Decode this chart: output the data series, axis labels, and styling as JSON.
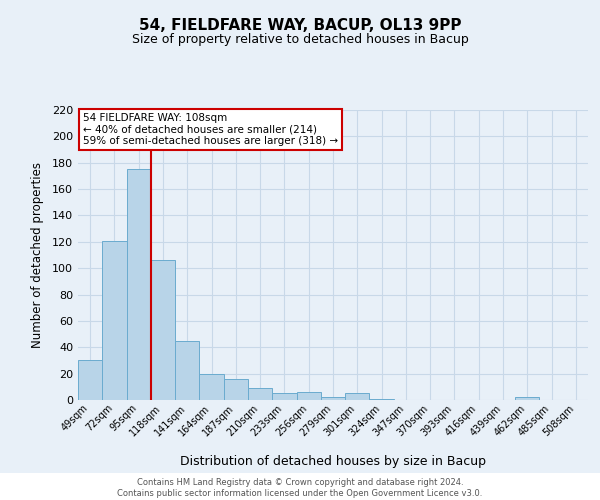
{
  "title": "54, FIELDFARE WAY, BACUP, OL13 9PP",
  "subtitle": "Size of property relative to detached houses in Bacup",
  "xlabel": "Distribution of detached houses by size in Bacup",
  "ylabel": "Number of detached properties",
  "bin_labels": [
    "49sqm",
    "72sqm",
    "95sqm",
    "118sqm",
    "141sqm",
    "164sqm",
    "187sqm",
    "210sqm",
    "233sqm",
    "256sqm",
    "279sqm",
    "301sqm",
    "324sqm",
    "347sqm",
    "370sqm",
    "393sqm",
    "416sqm",
    "439sqm",
    "462sqm",
    "485sqm",
    "508sqm"
  ],
  "bar_values": [
    30,
    121,
    175,
    106,
    45,
    20,
    16,
    9,
    5,
    6,
    2,
    5,
    1,
    0,
    0,
    0,
    0,
    0,
    2,
    0,
    0
  ],
  "bar_color": "#b8d4e8",
  "bar_edge_color": "#6aabcf",
  "grid_color": "#c8d8e8",
  "background_color": "#e8f0f8",
  "plot_bg_color": "#e8f0f8",
  "footer_bg_color": "#ffffff",
  "vline_color": "#cc0000",
  "annotation_title": "54 FIELDFARE WAY: 108sqm",
  "annotation_line1": "← 40% of detached houses are smaller (214)",
  "annotation_line2": "59% of semi-detached houses are larger (318) →",
  "annotation_box_color": "#ffffff",
  "annotation_box_edge_color": "#cc0000",
  "ylim": [
    0,
    220
  ],
  "yticks": [
    0,
    20,
    40,
    60,
    80,
    100,
    120,
    140,
    160,
    180,
    200,
    220
  ],
  "footer1": "Contains HM Land Registry data © Crown copyright and database right 2024.",
  "footer2": "Contains public sector information licensed under the Open Government Licence v3.0."
}
